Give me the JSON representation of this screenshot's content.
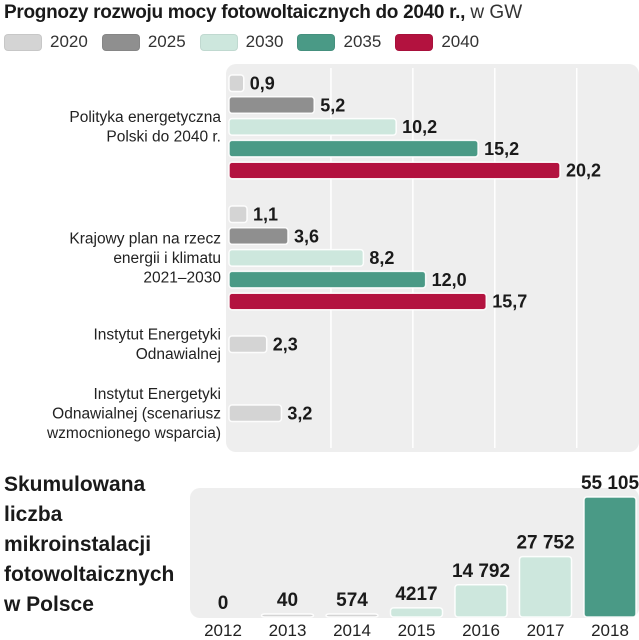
{
  "header": {
    "title": "Prognozy rozwoju mocy fotowoltaicznych do 2040 r.,",
    "unit": "w GW"
  },
  "colors": {
    "2020": "#d4d4d4",
    "2025": "#8f8f8f",
    "2030": "#cde7dd",
    "2035": "#4a9a86",
    "2040": "#b3123f",
    "panel": "#eeeeee"
  },
  "chart_data": [
    {
      "type": "bar",
      "orientation": "horizontal",
      "title": "Prognozy rozwoju mocy fotowoltaicznych do 2040 r., w GW",
      "xlabel": "",
      "ylabel": "",
      "xlim": [
        0,
        25
      ],
      "grid": true,
      "legend": "top",
      "series_names": [
        "2020",
        "2025",
        "2030",
        "2035",
        "2040"
      ],
      "groups": [
        {
          "label_lines": [
            "Polityka energetyczna",
            "Polski do 2040 r."
          ],
          "bars": [
            {
              "series": "2020",
              "value": 0.9,
              "label": "0,9"
            },
            {
              "series": "2025",
              "value": 5.2,
              "label": "5,2"
            },
            {
              "series": "2030",
              "value": 10.2,
              "label": "10,2"
            },
            {
              "series": "2035",
              "value": 15.2,
              "label": "15,2"
            },
            {
              "series": "2040",
              "value": 20.2,
              "label": "20,2"
            }
          ]
        },
        {
          "label_lines": [
            "Krajowy plan na rzecz",
            "energii i klimatu",
            "2021–2030"
          ],
          "bars": [
            {
              "series": "2020",
              "value": 1.1,
              "label": "1,1"
            },
            {
              "series": "2025",
              "value": 3.6,
              "label": "3,6"
            },
            {
              "series": "2030",
              "value": 8.2,
              "label": "8,2"
            },
            {
              "series": "2035",
              "value": 12.0,
              "label": "12,0"
            },
            {
              "series": "2040",
              "value": 15.7,
              "label": "15,7"
            }
          ]
        },
        {
          "label_lines": [
            "Instytut Energetyki",
            "Odnawialnej"
          ],
          "bars": [
            {
              "series": "2020",
              "value": 2.3,
              "label": "2,3"
            }
          ]
        },
        {
          "label_lines": [
            "Instytut Energetyki",
            "Odnawialnej (scenariusz",
            "wzmocnionego wsparcia)"
          ],
          "bars": [
            {
              "series": "2020",
              "value": 3.2,
              "label": "3,2"
            }
          ]
        }
      ]
    },
    {
      "type": "bar",
      "orientation": "vertical",
      "title_lines": [
        "Skumulowana",
        "liczba",
        "mikroinstalacji",
        "fotowoltaicznych",
        "w Polsce"
      ],
      "categories": [
        "2012",
        "2013",
        "2014",
        "2015",
        "2016",
        "2017",
        "2018"
      ],
      "values": [
        0,
        40,
        574,
        4217,
        14792,
        27752,
        55105
      ],
      "value_labels": [
        "0",
        "40",
        "574",
        "4217",
        "14 792",
        "27 752",
        "55 105"
      ],
      "ylim": [
        0,
        55105
      ],
      "bar_colors": [
        "#d4d4d4",
        "#d4d4d4",
        "#d4d4d4",
        "#cde7dd",
        "#cde7dd",
        "#cde7dd",
        "#4a9a86"
      ]
    }
  ]
}
